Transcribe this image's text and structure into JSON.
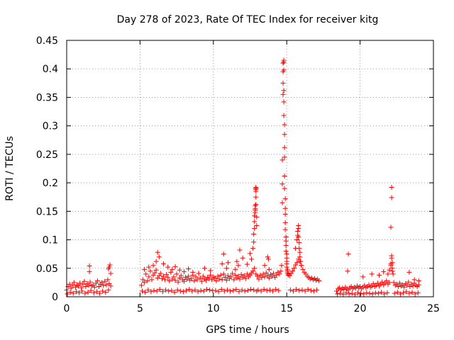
{
  "chart_data": {
    "type": "scatter",
    "title": "Day 278 of 2023, Rate Of TEC Index for receiver kitg",
    "xlabel": "GPS time / hours",
    "ylabel": "ROTI / TECUs",
    "xlim": [
      0,
      25
    ],
    "ylim": [
      0,
      0.45
    ],
    "x_ticks": [
      0,
      5,
      10,
      15,
      20,
      25
    ],
    "x_tick_labels": [
      "0",
      "5",
      "10",
      "15",
      "20",
      "25"
    ],
    "y_ticks": [
      0,
      0.05,
      0.1,
      0.15,
      0.2,
      0.25,
      0.3,
      0.35,
      0.4,
      0.45
    ],
    "y_tick_labels": [
      "0",
      "0.05",
      "0.1",
      "0.15",
      "0.2",
      "0.25",
      "0.3",
      "0.35",
      "0.4",
      "0.45"
    ],
    "grid": true,
    "marker": "+",
    "color": "#ff0000",
    "series": [
      {
        "name": "ROTI",
        "x": [
          0.0,
          0.1,
          0.2,
          0.3,
          0.4,
          0.5,
          0.6,
          0.7,
          0.8,
          0.9,
          1.0,
          1.1,
          1.2,
          1.3,
          1.4,
          1.5,
          1.6,
          1.7,
          1.8,
          1.9,
          2.0,
          2.1,
          2.2,
          2.3,
          2.4,
          2.5,
          2.6,
          2.7,
          2.8,
          2.9,
          3.0,
          0.05,
          0.25,
          0.45,
          0.65,
          0.85,
          1.05,
          1.25,
          1.45,
          1.65,
          1.85,
          2.05,
          2.25,
          2.45,
          2.65,
          2.85,
          1.55,
          1.55,
          2.85,
          2.9,
          2.95,
          3.0,
          5.1,
          5.2,
          5.3,
          5.4,
          5.5,
          5.6,
          5.7,
          5.8,
          5.9,
          6.0,
          6.1,
          6.2,
          6.3,
          6.4,
          6.5,
          6.6,
          6.7,
          6.8,
          6.9,
          7.0,
          7.1,
          7.2,
          7.3,
          7.4,
          7.5,
          7.6,
          7.7,
          7.8,
          7.9,
          8.0,
          8.1,
          8.2,
          8.3,
          8.4,
          8.5,
          8.6,
          8.7,
          8.8,
          8.9,
          9.0,
          9.1,
          9.2,
          9.3,
          9.4,
          9.5,
          9.6,
          9.7,
          9.8,
          9.9,
          10.0,
          5.15,
          5.35,
          5.55,
          5.75,
          5.95,
          6.15,
          6.35,
          6.55,
          6.75,
          6.95,
          7.15,
          7.35,
          7.55,
          7.75,
          7.95,
          8.15,
          8.35,
          8.55,
          8.75,
          8.95,
          9.15,
          9.35,
          9.55,
          9.75,
          9.95,
          5.3,
          5.6,
          5.9,
          6.1,
          6.2,
          6.3,
          6.6,
          6.9,
          7.2,
          7.4,
          7.7,
          8.0,
          8.3,
          8.6,
          9.0,
          9.4,
          9.8,
          10.1,
          10.2,
          10.3,
          10.4,
          10.5,
          10.6,
          10.7,
          10.8,
          10.9,
          11.0,
          11.1,
          11.2,
          11.3,
          11.4,
          11.5,
          11.6,
          11.7,
          11.8,
          11.9,
          12.0,
          12.1,
          12.2,
          12.3,
          12.4,
          12.5,
          12.6,
          12.7,
          12.8,
          12.9,
          13.0,
          10.15,
          10.35,
          10.55,
          10.75,
          10.95,
          11.15,
          11.35,
          11.55,
          11.75,
          11.95,
          12.15,
          12.35,
          12.55,
          12.75,
          12.95,
          10.6,
          10.7,
          10.9,
          11.0,
          11.5,
          11.6,
          11.7,
          11.8,
          12.0,
          12.3,
          12.5,
          12.6,
          12.7,
          12.75,
          12.75,
          12.8,
          12.8,
          12.8,
          12.85,
          12.85,
          12.85,
          12.85,
          12.9,
          12.9,
          12.9,
          12.9,
          12.9,
          12.9,
          12.9,
          12.95,
          12.95,
          13.0,
          13.1,
          13.2,
          13.3,
          13.4,
          13.5,
          13.6,
          13.7,
          13.8,
          13.9,
          14.0,
          14.1,
          14.2,
          14.3,
          14.4,
          14.5,
          14.6,
          13.05,
          13.25,
          13.45,
          13.65,
          13.85,
          14.05,
          14.25,
          14.45,
          13.7,
          13.75,
          13.8,
          13.5,
          14.65,
          14.7,
          14.7,
          14.7,
          14.75,
          14.75,
          14.75,
          14.75,
          14.8,
          14.8,
          14.8,
          14.8,
          14.8,
          14.8,
          14.85,
          14.85,
          14.85,
          14.85,
          14.85,
          14.85,
          14.9,
          14.9,
          14.9,
          14.9,
          14.9,
          14.95,
          14.95,
          14.95,
          14.95,
          15.0,
          15.0,
          15.0,
          15.0,
          15.0,
          15.05,
          15.05,
          15.05,
          15.1,
          15.1,
          15.2,
          15.3,
          15.4,
          15.5,
          15.6,
          15.7,
          15.8,
          15.9,
          16.0,
          16.1,
          16.2,
          16.3,
          16.4,
          16.5,
          16.6,
          16.7,
          16.8,
          16.9,
          17.0,
          17.1,
          17.2,
          15.25,
          15.45,
          15.65,
          15.85,
          16.05,
          16.25,
          16.45,
          16.65,
          16.85,
          17.05,
          15.6,
          15.7,
          15.75,
          15.75,
          15.8,
          15.8,
          15.8,
          15.85,
          15.85,
          15.9,
          15.9,
          15.95,
          16.0,
          18.4,
          18.5,
          18.6,
          18.7,
          18.8,
          18.9,
          19.0,
          19.1,
          19.2,
          19.3,
          19.4,
          19.5,
          19.6,
          19.7,
          19.8,
          19.9,
          20.0,
          20.1,
          20.2,
          20.3,
          20.4,
          20.5,
          20.6,
          20.7,
          20.8,
          20.9,
          21.0,
          21.1,
          21.2,
          21.3,
          21.4,
          21.5,
          21.6,
          21.7,
          21.8,
          21.9,
          22.0,
          18.45,
          18.65,
          18.85,
          19.05,
          19.25,
          19.45,
          19.65,
          19.85,
          20.05,
          20.25,
          20.45,
          20.65,
          20.85,
          21.05,
          21.25,
          21.45,
          21.65,
          21.85,
          19.15,
          19.2,
          20.2,
          20.8,
          21.3,
          21.6,
          21.9,
          22.0,
          22.1,
          22.1,
          22.1,
          22.15,
          22.15,
          22.15,
          22.15,
          22.2,
          22.2,
          22.2,
          22.25,
          22.3,
          22.4,
          22.5,
          22.6,
          22.7,
          22.8,
          22.9,
          23.0,
          23.1,
          23.2,
          23.3,
          23.4,
          23.5,
          23.6,
          23.7,
          23.8,
          23.9,
          24.0,
          22.35,
          22.55,
          22.75,
          22.95,
          23.15,
          23.35,
          23.55,
          23.75,
          23.95,
          23.35,
          23.7,
          24.0
        ],
        "y": [
          0.012,
          0.018,
          0.022,
          0.015,
          0.02,
          0.025,
          0.017,
          0.021,
          0.019,
          0.024,
          0.016,
          0.022,
          0.027,
          0.018,
          0.023,
          0.02,
          0.026,
          0.019,
          0.021,
          0.017,
          0.024,
          0.028,
          0.018,
          0.022,
          0.025,
          0.02,
          0.027,
          0.021,
          0.03,
          0.023,
          0.019,
          0.005,
          0.008,
          0.006,
          0.009,
          0.007,
          0.01,
          0.006,
          0.008,
          0.011,
          0.007,
          0.009,
          0.006,
          0.01,
          0.008,
          0.012,
          0.044,
          0.054,
          0.049,
          0.052,
          0.056,
          0.041,
          0.02,
          0.03,
          0.025,
          0.04,
          0.028,
          0.035,
          0.045,
          0.03,
          0.038,
          0.042,
          0.047,
          0.033,
          0.037,
          0.041,
          0.032,
          0.036,
          0.03,
          0.039,
          0.034,
          0.028,
          0.043,
          0.031,
          0.035,
          0.029,
          0.04,
          0.026,
          0.033,
          0.037,
          0.03,
          0.027,
          0.034,
          0.031,
          0.036,
          0.029,
          0.032,
          0.038,
          0.028,
          0.035,
          0.03,
          0.041,
          0.033,
          0.027,
          0.036,
          0.031,
          0.029,
          0.034,
          0.032,
          0.038,
          0.03,
          0.035,
          0.01,
          0.008,
          0.012,
          0.009,
          0.011,
          0.01,
          0.013,
          0.009,
          0.012,
          0.01,
          0.011,
          0.008,
          0.012,
          0.01,
          0.009,
          0.011,
          0.013,
          0.01,
          0.012,
          0.009,
          0.011,
          0.01,
          0.013,
          0.012,
          0.011,
          0.048,
          0.052,
          0.055,
          0.062,
          0.078,
          0.07,
          0.058,
          0.052,
          0.048,
          0.053,
          0.047,
          0.044,
          0.049,
          0.043,
          0.041,
          0.05,
          0.046,
          0.033,
          0.028,
          0.036,
          0.031,
          0.038,
          0.03,
          0.04,
          0.034,
          0.029,
          0.037,
          0.032,
          0.035,
          0.041,
          0.03,
          0.038,
          0.033,
          0.036,
          0.031,
          0.039,
          0.034,
          0.037,
          0.032,
          0.04,
          0.035,
          0.038,
          0.042,
          0.045,
          0.05,
          0.04,
          0.036,
          0.011,
          0.009,
          0.013,
          0.01,
          0.012,
          0.01,
          0.011,
          0.013,
          0.009,
          0.012,
          0.01,
          0.011,
          0.013,
          0.012,
          0.01,
          0.058,
          0.075,
          0.05,
          0.06,
          0.048,
          0.062,
          0.055,
          0.082,
          0.068,
          0.057,
          0.076,
          0.066,
          0.085,
          0.096,
          0.11,
          0.12,
          0.132,
          0.142,
          0.148,
          0.152,
          0.155,
          0.16,
          0.185,
          0.188,
          0.19,
          0.192,
          0.19,
          0.175,
          0.162,
          0.14,
          0.125,
          0.036,
          0.031,
          0.038,
          0.034,
          0.04,
          0.035,
          0.042,
          0.037,
          0.033,
          0.039,
          0.036,
          0.041,
          0.034,
          0.038,
          0.043,
          0.04,
          0.045,
          0.012,
          0.01,
          0.013,
          0.011,
          0.012,
          0.01,
          0.013,
          0.011,
          0.07,
          0.066,
          0.048,
          0.055,
          0.055,
          0.165,
          0.198,
          0.24,
          0.355,
          0.375,
          0.395,
          0.41,
          0.415,
          0.412,
          0.398,
          0.362,
          0.342,
          0.318,
          0.302,
          0.285,
          0.262,
          0.245,
          0.212,
          0.19,
          0.172,
          0.155,
          0.145,
          0.13,
          0.118,
          0.105,
          0.098,
          0.09,
          0.08,
          0.075,
          0.068,
          0.062,
          0.058,
          0.052,
          0.048,
          0.045,
          0.042,
          0.04,
          0.038,
          0.037,
          0.041,
          0.045,
          0.05,
          0.056,
          0.06,
          0.066,
          0.062,
          0.055,
          0.048,
          0.043,
          0.04,
          0.036,
          0.034,
          0.031,
          0.033,
          0.03,
          0.032,
          0.029,
          0.031,
          0.028,
          0.012,
          0.01,
          0.013,
          0.011,
          0.012,
          0.01,
          0.013,
          0.011,
          0.01,
          0.012,
          0.085,
          0.1,
          0.108,
          0.115,
          0.12,
          0.125,
          0.105,
          0.095,
          0.085,
          0.078,
          0.07,
          0.062,
          0.055,
          0.01,
          0.014,
          0.016,
          0.012,
          0.015,
          0.013,
          0.017,
          0.014,
          0.012,
          0.016,
          0.018,
          0.014,
          0.017,
          0.015,
          0.019,
          0.016,
          0.018,
          0.014,
          0.017,
          0.02,
          0.016,
          0.018,
          0.021,
          0.017,
          0.019,
          0.023,
          0.018,
          0.02,
          0.024,
          0.019,
          0.022,
          0.026,
          0.021,
          0.024,
          0.028,
          0.022,
          0.025,
          0.005,
          0.006,
          0.004,
          0.007,
          0.005,
          0.006,
          0.004,
          0.007,
          0.006,
          0.005,
          0.007,
          0.006,
          0.005,
          0.007,
          0.006,
          0.008,
          0.005,
          0.007,
          0.045,
          0.075,
          0.035,
          0.04,
          0.038,
          0.044,
          0.04,
          0.047,
          0.055,
          0.058,
          0.122,
          0.174,
          0.192,
          0.072,
          0.068,
          0.06,
          0.05,
          0.045,
          0.04,
          0.025,
          0.02,
          0.022,
          0.018,
          0.024,
          0.019,
          0.021,
          0.017,
          0.023,
          0.02,
          0.026,
          0.018,
          0.022,
          0.019,
          0.024,
          0.02,
          0.018,
          0.021,
          0.006,
          0.008,
          0.005,
          0.007,
          0.009,
          0.006,
          0.008,
          0.005,
          0.007,
          0.043,
          0.03,
          0.028
        ]
      }
    ]
  }
}
